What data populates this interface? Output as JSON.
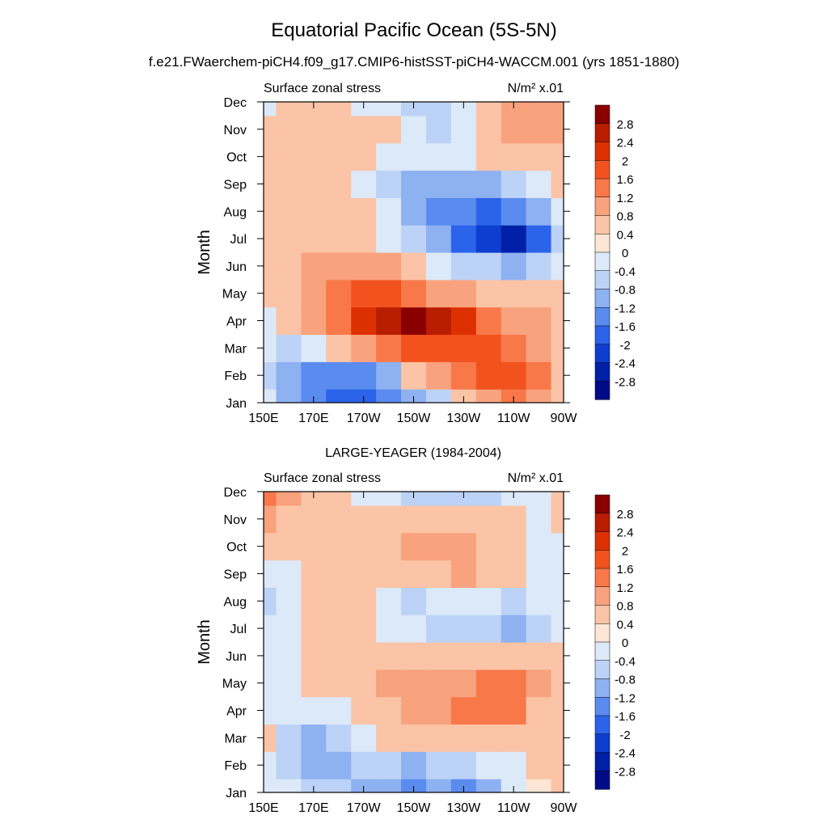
{
  "figure": {
    "title": "Equatorial Pacific Ocean (5S-5N)",
    "subtitle": "f.e21.FWaerchem-piCH4.f09_g17.CMIP6-histSST-piCH4-WACCM.001 (yrs 1851-1880)"
  },
  "colorbar": {
    "levels": [
      "2.8",
      "2.4",
      "2",
      "1.6",
      "1.2",
      "0.8",
      "0.4",
      "0",
      "-0.4",
      "-0.8",
      "-1.2",
      "-1.6",
      "-2",
      "-2.4",
      "-2.8"
    ],
    "colors": [
      "#8a0000",
      "#b81d00",
      "#dd3000",
      "#f2531e",
      "#f8784a",
      "#f9a27e",
      "#fbc4a6",
      "#fde6d6",
      "#dce9f8",
      "#bcd2f6",
      "#8eb1f2",
      "#5a8bef",
      "#2b63ea",
      "#0e3ecf",
      "#0020a8",
      "#000c86"
    ]
  },
  "chart_data": [
    {
      "type": "heatmap",
      "title": "",
      "left_label": "Surface zonal stress",
      "right_label": "N/m² x.01",
      "ylabel": "Month",
      "xlabel": "",
      "x_ticks": [
        "150E",
        "170E",
        "170W",
        "150W",
        "130W",
        "110W",
        "90W"
      ],
      "y_ticks": [
        "Jan",
        "Feb",
        "Mar",
        "Apr",
        "May",
        "Jun",
        "Jul",
        "Aug",
        "Sep",
        "Oct",
        "Nov",
        "Dec"
      ],
      "xlim": [
        150,
        270
      ],
      "ylim": [
        0,
        11
      ],
      "z_grid": [
        [
          -0.4,
          -1.0,
          -1.5,
          -1.7,
          -2.0,
          -1.5,
          -1.0,
          -0.5,
          0.4,
          0.8,
          1.2,
          0.8,
          0.4
        ],
        [
          -0.5,
          -0.9,
          -1.4,
          -1.5,
          -1.5,
          -0.9,
          0.4,
          1.0,
          1.3,
          1.6,
          1.6,
          1.2,
          0.4
        ],
        [
          -0.4,
          -0.6,
          -0.3,
          0.4,
          0.8,
          1.3,
          1.6,
          1.8,
          1.8,
          1.6,
          1.2,
          0.8,
          0.4
        ],
        [
          -0.4,
          0.4,
          0.8,
          1.4,
          2.0,
          2.4,
          2.9,
          2.4,
          2.0,
          1.2,
          0.8,
          0.8,
          0.4
        ],
        [
          0.4,
          0.4,
          0.8,
          1.2,
          1.8,
          1.6,
          1.3,
          0.9,
          0.8,
          0.4,
          0.4,
          0.4,
          0.4
        ],
        [
          0.4,
          0.4,
          0.8,
          0.8,
          1.0,
          0.8,
          0.4,
          -0.4,
          -0.8,
          -0.8,
          -0.9,
          -0.8,
          -0.4
        ],
        [
          0.4,
          0.4,
          0.4,
          0.6,
          0.4,
          -0.4,
          -0.8,
          -1.2,
          -1.8,
          -2.2,
          -2.6,
          -1.8,
          -0.8
        ],
        [
          0.4,
          0.4,
          0.4,
          0.4,
          0.4,
          -0.4,
          -1.2,
          -1.6,
          -1.6,
          -2.0,
          -1.6,
          -1.2,
          -0.4
        ],
        [
          0.4,
          0.4,
          0.4,
          0.4,
          -0.4,
          -0.6,
          -1.0,
          -1.0,
          -1.0,
          -1.0,
          -0.6,
          -0.4,
          0.4
        ],
        [
          0.4,
          0.4,
          0.4,
          0.4,
          0.4,
          -0.4,
          -0.4,
          -0.4,
          -0.2,
          0.4,
          0.4,
          0.4,
          0.4
        ],
        [
          0.4,
          0.4,
          0.4,
          0.4,
          0.4,
          0.4,
          -0.4,
          -0.6,
          -0.4,
          0.4,
          0.8,
          1.0,
          0.8
        ],
        [
          -0.4,
          0.4,
          0.4,
          0.4,
          -0.4,
          -0.4,
          -0.8,
          -0.8,
          -0.4,
          0.4,
          0.8,
          0.9,
          0.8
        ]
      ]
    },
    {
      "type": "heatmap",
      "title": "LARGE-YEAGER (1984-2004)",
      "left_label": "Surface zonal stress",
      "right_label": "N/m² x.01",
      "ylabel": "Month",
      "xlabel": "",
      "x_ticks": [
        "150E",
        "170E",
        "170W",
        "150W",
        "130W",
        "110W",
        "90W"
      ],
      "y_ticks": [
        "Jan",
        "Feb",
        "Mar",
        "Apr",
        "May",
        "Jun",
        "Jul",
        "Aug",
        "Sep",
        "Oct",
        "Nov",
        "Dec"
      ],
      "xlim": [
        150,
        270
      ],
      "ylim": [
        0,
        11
      ],
      "z_grid": [
        [
          -0.4,
          -0.4,
          -0.8,
          -0.8,
          -1.0,
          -1.1,
          -1.3,
          -1.2,
          -1.4,
          -1.0,
          -0.4,
          0.0,
          0.4
        ],
        [
          -0.4,
          -0.8,
          -1.0,
          -1.0,
          -0.8,
          -0.8,
          -1.0,
          -0.8,
          -0.6,
          -0.4,
          -0.4,
          0.4,
          0.4
        ],
        [
          0.4,
          -0.6,
          -0.9,
          -0.8,
          -0.4,
          0.4,
          0.4,
          0.4,
          0.4,
          0.4,
          0.4,
          0.4,
          0.4
        ],
        [
          -0.4,
          -0.4,
          -0.4,
          -0.4,
          0.4,
          0.6,
          0.9,
          1.0,
          1.4,
          1.5,
          1.2,
          0.6,
          0.4
        ],
        [
          -0.4,
          -0.4,
          0.4,
          0.4,
          0.6,
          0.8,
          1.0,
          1.0,
          1.0,
          1.2,
          1.3,
          0.8,
          0.4
        ],
        [
          -0.4,
          -0.4,
          0.4,
          0.4,
          0.4,
          0.4,
          0.4,
          0.4,
          0.4,
          0.4,
          0.4,
          0.4,
          0.4
        ],
        [
          -0.4,
          -0.4,
          0.4,
          0.4,
          0.4,
          -0.4,
          -0.4,
          -0.8,
          -0.8,
          -0.8,
          -1.0,
          -0.8,
          -0.4
        ],
        [
          -0.8,
          -0.4,
          0.4,
          0.4,
          0.4,
          -0.4,
          -0.6,
          -0.4,
          -0.4,
          -0.4,
          -0.6,
          -0.4,
          -0.4
        ],
        [
          -0.4,
          -0.4,
          0.4,
          0.4,
          0.4,
          0.4,
          0.4,
          0.6,
          0.8,
          0.6,
          0.4,
          -0.4,
          -0.4
        ],
        [
          0.4,
          0.4,
          0.4,
          0.4,
          0.4,
          0.6,
          0.8,
          0.8,
          0.8,
          0.6,
          0.4,
          -0.4,
          -0.4
        ],
        [
          1.0,
          0.6,
          0.4,
          0.4,
          0.4,
          0.4,
          0.4,
          0.4,
          0.4,
          0.4,
          0.4,
          -0.4,
          0.4
        ],
        [
          1.4,
          1.0,
          0.6,
          0.4,
          -0.4,
          -0.4,
          -0.6,
          -0.6,
          -0.8,
          -0.6,
          -0.4,
          -0.4,
          0.4
        ]
      ]
    }
  ]
}
